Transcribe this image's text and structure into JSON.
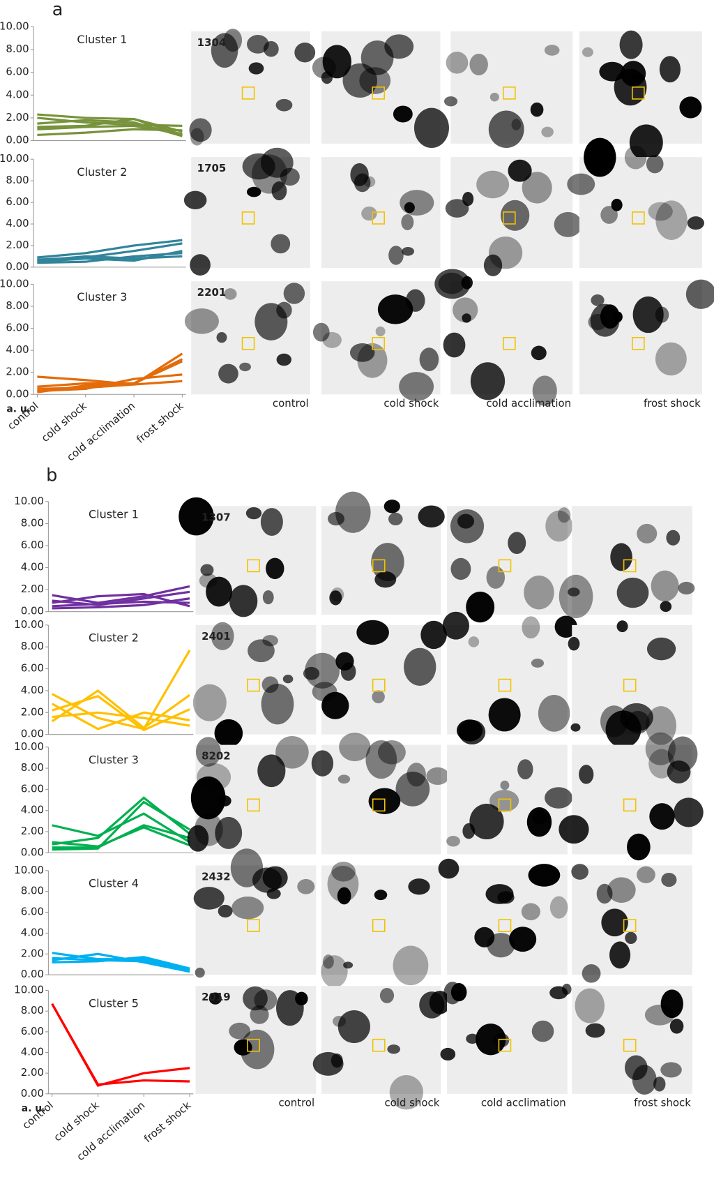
{
  "panel_labels": [
    "a",
    "b"
  ],
  "gel_labels": [
    [
      "control",
      "cold shock",
      "cold acclimation",
      "frost shock"
    ],
    [
      "control",
      "cold shock",
      "cold acclimation",
      "frost shock"
    ]
  ],
  "chart_data": [
    {
      "type": "line",
      "title": "Cluster 1",
      "spot": "1304",
      "color": "#77933c",
      "ylim": [
        0,
        10
      ],
      "yticks": [
        {
          "value": 0,
          "label": "0.00"
        },
        {
          "value": 2,
          "label": "2.00"
        },
        {
          "value": 4,
          "label": "4.00"
        },
        {
          "value": 6,
          "label": "6.00"
        },
        {
          "value": 8,
          "label": "8.00"
        },
        {
          "value": 10,
          "label": "10.00"
        }
      ],
      "series": [
        {
          "values": [
            2.3,
            2.0,
            1.9,
            0.8
          ]
        },
        {
          "values": [
            1.5,
            1.8,
            1.6,
            0.4
          ]
        },
        {
          "values": [
            0.5,
            0.7,
            1.0,
            0.9
          ]
        },
        {
          "values": [
            1.2,
            1.3,
            1.9,
            0.5
          ]
        },
        {
          "values": [
            2.0,
            1.6,
            1.4,
            1.3
          ]
        },
        {
          "values": [
            1.0,
            1.2,
            1.3,
            0.6
          ]
        }
      ]
    },
    {
      "type": "line",
      "title": "Cluster 2",
      "spot": "1705",
      "color": "#31849b",
      "ylim": [
        0,
        10
      ],
      "yticks": [
        {
          "value": 0,
          "label": "0.00"
        },
        {
          "value": 2,
          "label": "2.00"
        },
        {
          "value": 4,
          "label": "4.00"
        },
        {
          "value": 6,
          "label": "6.00"
        },
        {
          "value": 8,
          "label": "8.00"
        },
        {
          "value": 10,
          "label": "10.00"
        }
      ],
      "series": [
        {
          "values": [
            0.5,
            0.8,
            0.6,
            1.5
          ]
        },
        {
          "values": [
            0.9,
            1.3,
            2.0,
            2.5
          ]
        },
        {
          "values": [
            0.4,
            0.5,
            1.0,
            1.3
          ]
        },
        {
          "values": [
            0.7,
            0.9,
            1.5,
            2.2
          ]
        },
        {
          "values": [
            0.6,
            1.0,
            0.8,
            1.0
          ]
        }
      ]
    },
    {
      "type": "line",
      "title": "Cluster 3",
      "spot": "2201",
      "color": "#e36c0a",
      "ylim": [
        0,
        10
      ],
      "yticks": [
        {
          "value": 0,
          "label": "0.00"
        },
        {
          "value": 2,
          "label": "2.00"
        },
        {
          "value": 4,
          "label": "4.00"
        },
        {
          "value": 6,
          "label": "6.00"
        },
        {
          "value": 8,
          "label": "8.00"
        },
        {
          "value": 10,
          "label": "10.00"
        }
      ],
      "series": [
        {
          "values": [
            1.6,
            1.3,
            0.9,
            3.7
          ]
        },
        {
          "values": [
            0.7,
            1.0,
            1.0,
            3.2
          ]
        },
        {
          "values": [
            0.3,
            0.5,
            1.4,
            1.8
          ]
        },
        {
          "values": [
            0.5,
            0.6,
            0.9,
            1.2
          ]
        },
        {
          "values": [
            0.2,
            0.8,
            1.0,
            3.0
          ]
        }
      ],
      "ylabel": "a. u.",
      "categories": [
        "control",
        "cold shock",
        "cold acclimation",
        "frost shock"
      ]
    },
    {
      "type": "line",
      "title": "Cluster 1",
      "spot": "1307",
      "color": "#7030a0",
      "ylim": [
        0,
        10
      ],
      "yticks": [
        {
          "value": 0,
          "label": "0.00"
        },
        {
          "value": 2,
          "label": "2.00"
        },
        {
          "value": 4,
          "label": "4.00"
        },
        {
          "value": 6,
          "label": "6.00"
        },
        {
          "value": 8,
          "label": "8.00"
        },
        {
          "value": 10,
          "label": "10.00"
        }
      ],
      "series": [
        {
          "values": [
            1.5,
            0.8,
            1.4,
            2.3
          ]
        },
        {
          "values": [
            0.3,
            0.4,
            0.6,
            1.2
          ]
        },
        {
          "values": [
            0.8,
            1.4,
            1.6,
            0.5
          ]
        },
        {
          "values": [
            1.0,
            0.6,
            1.2,
            1.8
          ]
        },
        {
          "values": [
            0.5,
            0.7,
            0.9,
            0.8
          ]
        }
      ]
    },
    {
      "type": "line",
      "title": "Cluster 2",
      "spot": "2401",
      "color": "#ffc000",
      "ylim": [
        0,
        10
      ],
      "yticks": [
        {
          "value": 0,
          "label": "0.00"
        },
        {
          "value": 2,
          "label": "2.00"
        },
        {
          "value": 4,
          "label": "4.00"
        },
        {
          "value": 6,
          "label": "6.00"
        },
        {
          "value": 8,
          "label": "8.00"
        },
        {
          "value": 10,
          "label": "10.00"
        }
      ],
      "series": [
        {
          "values": [
            3.7,
            1.5,
            0.5,
            7.7
          ]
        },
        {
          "values": [
            1.2,
            4.0,
            0.6,
            3.6
          ]
        },
        {
          "values": [
            2.8,
            0.5,
            2.0,
            1.3
          ]
        },
        {
          "values": [
            2.2,
            3.5,
            0.4,
            2.3
          ]
        },
        {
          "values": [
            1.6,
            2.0,
            1.5,
            0.8
          ]
        }
      ]
    },
    {
      "type": "line",
      "title": "Cluster 3",
      "spot": "8202",
      "color": "#00b050",
      "ylim": [
        0,
        10
      ],
      "yticks": [
        {
          "value": 0,
          "label": "0.00"
        },
        {
          "value": 2,
          "label": "2.00"
        },
        {
          "value": 4,
          "label": "4.00"
        },
        {
          "value": 6,
          "label": "6.00"
        },
        {
          "value": 8,
          "label": "8.00"
        },
        {
          "value": 10,
          "label": "10.00"
        }
      ],
      "series": [
        {
          "values": [
            2.6,
            1.6,
            3.7,
            1.0
          ]
        },
        {
          "values": [
            0.8,
            1.4,
            5.2,
            1.8
          ]
        },
        {
          "values": [
            0.3,
            0.4,
            4.8,
            2.2
          ]
        },
        {
          "values": [
            1.0,
            0.6,
            2.4,
            0.7
          ]
        },
        {
          "values": [
            0.5,
            0.5,
            2.6,
            1.4
          ]
        }
      ]
    },
    {
      "type": "line",
      "title": "Cluster 4",
      "spot": "2432",
      "color": "#00b0f0",
      "ylim": [
        0,
        10
      ],
      "yticks": [
        {
          "value": 0,
          "label": "0.00"
        },
        {
          "value": 2,
          "label": "2.00"
        },
        {
          "value": 4,
          "label": "4.00"
        },
        {
          "value": 6,
          "label": "6.00"
        },
        {
          "value": 8,
          "label": "8.00"
        },
        {
          "value": 10,
          "label": "10.00"
        }
      ],
      "series": [
        {
          "values": [
            2.1,
            1.5,
            1.5,
            0.5
          ]
        },
        {
          "values": [
            1.4,
            2.0,
            1.2,
            0.3
          ]
        },
        {
          "values": [
            1.2,
            1.3,
            1.7,
            0.6
          ]
        },
        {
          "values": [
            1.6,
            1.4,
            1.3,
            0.4
          ]
        }
      ]
    },
    {
      "type": "line",
      "title": "Cluster 5",
      "spot": "2019",
      "color": "#ff0000",
      "ylim": [
        0,
        10
      ],
      "yticks": [
        {
          "value": 0,
          "label": "0.00"
        },
        {
          "value": 2,
          "label": "2.00"
        },
        {
          "value": 4,
          "label": "4.00"
        },
        {
          "value": 6,
          "label": "6.00"
        },
        {
          "value": 8,
          "label": "8.00"
        },
        {
          "value": 10,
          "label": "10.00"
        }
      ],
      "series": [
        {
          "values": [
            8.7,
            0.8,
            2.0,
            2.5
          ]
        },
        {
          "values": [
            8.7,
            0.9,
            1.3,
            1.2
          ]
        }
      ],
      "ylabel": "a. u.",
      "categories": [
        "control",
        "cold shock",
        "cold acclimation",
        "frost shock"
      ]
    }
  ]
}
